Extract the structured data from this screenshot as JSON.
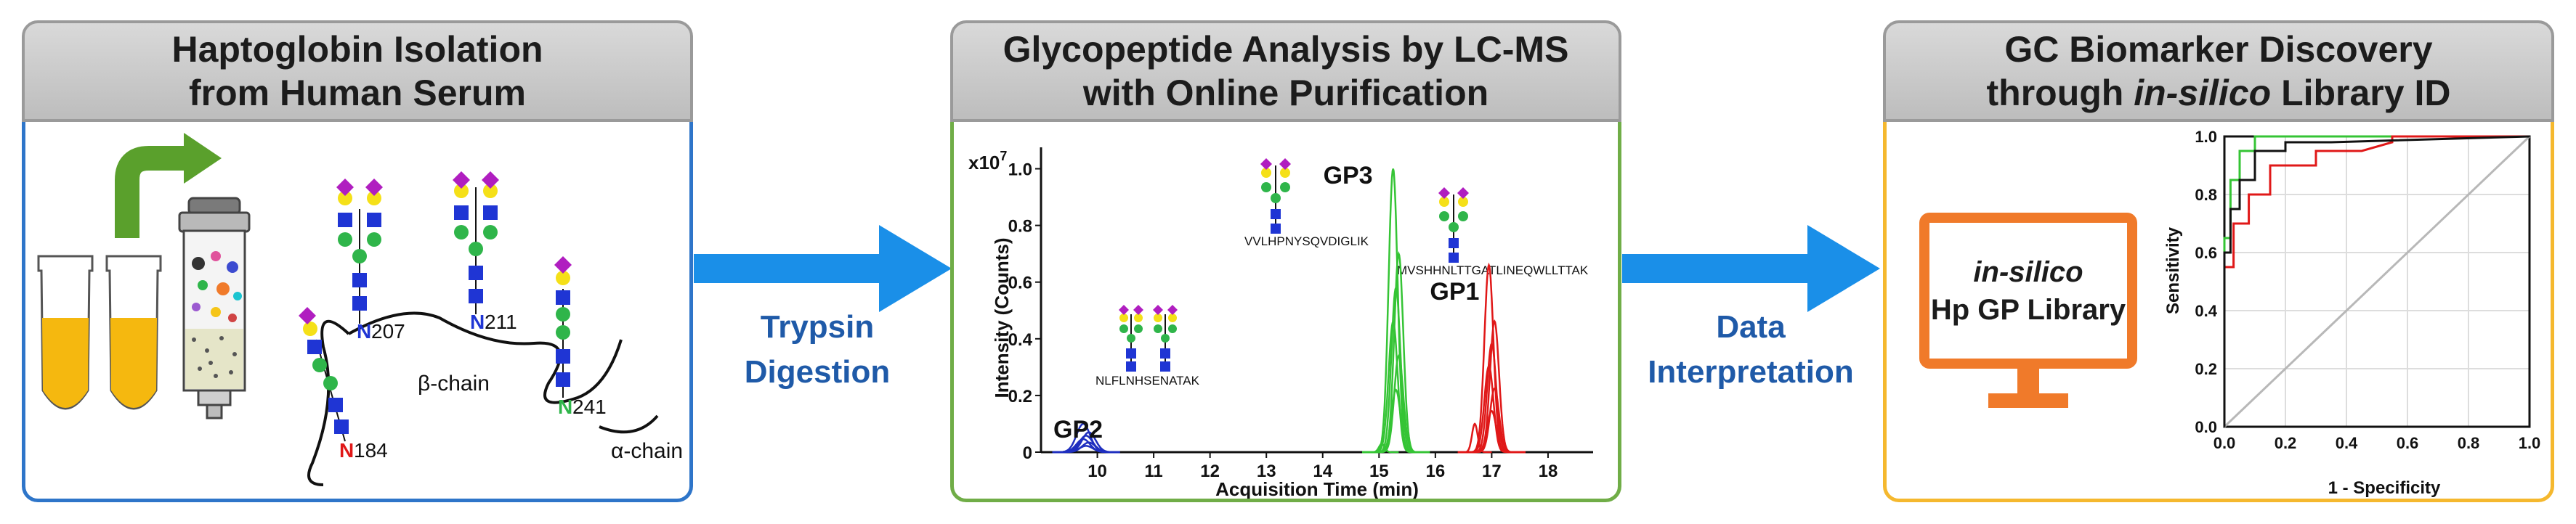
{
  "panel1": {
    "title_line1": "Haptoglobin Isolation",
    "title_line2": "from Human Serum",
    "labels": {
      "n207": "207",
      "n211": "211",
      "n241": "241",
      "n184": "184",
      "n": "N",
      "beta": "β-chain",
      "alpha": "α-chain"
    }
  },
  "arrow1": {
    "line1": "Trypsin",
    "line2": "Digestion"
  },
  "panel2": {
    "title_line1": "Glycopeptide Analysis by LC-MS",
    "title_line2": "with Online Purification",
    "exp_label": "x10",
    "exp_power": "7",
    "gp3_seq": "VVLHPNYSQVDIGLIK",
    "gp1_seq": "MVSHHNLTTGATLINEQWLLTTAK",
    "gp2_seq": "NLFLNHSENATAK"
  },
  "arrow2": {
    "line1": "Data",
    "line2": "Interpretation"
  },
  "panel3": {
    "title_line1": "GC Biomarker Discovery",
    "title_pre": "through ",
    "title_ital": "in-silico",
    "title_post": " Library ID",
    "monitor_line1": "in-silico",
    "monitor_line2": "Hp GP Library"
  },
  "colors": {
    "panel1_border": "#2e75c9",
    "panel2_border": "#70ad47",
    "panel3_border": "#f5b82e",
    "arrow": "#1a8fe8",
    "monitor": "#f07a2a"
  },
  "chart_data": [
    {
      "type": "line",
      "title": "",
      "xlabel": "Acquisition Time (min)",
      "ylabel": "Intensity (Counts)",
      "y_multiplier": "x10^7",
      "xlim": [
        9,
        18.8
      ],
      "ylim": [
        0,
        1.05
      ],
      "xticks": [
        10,
        11,
        12,
        13,
        14,
        15,
        16,
        17,
        18
      ],
      "yticks": [
        0,
        0.2,
        0.4,
        0.6,
        0.8,
        1.0
      ],
      "peaks": [
        {
          "name": "GP2",
          "color": "#1f2fbf",
          "center": 9.8,
          "height": 0.1
        },
        {
          "name": "GP3",
          "color": "#35c435",
          "center": 15.3,
          "height": 1.0
        },
        {
          "name": "GP1",
          "color": "#e01818",
          "center": 17.0,
          "height": 0.66
        }
      ]
    },
    {
      "type": "line",
      "title": "",
      "xlabel": "1 - Specificity",
      "ylabel": "Sensitivity",
      "xlim": [
        0,
        1
      ],
      "ylim": [
        0,
        1
      ],
      "xticks": [
        0.0,
        0.2,
        0.4,
        0.6,
        0.8,
        1.0
      ],
      "yticks": [
        0.0,
        0.2,
        0.4,
        0.6,
        0.8,
        1.0
      ],
      "series": [
        {
          "color": "#111111",
          "points": [
            [
              0,
              0
            ],
            [
              0,
              0.6
            ],
            [
              0.02,
              0.6
            ],
            [
              0.02,
              0.75
            ],
            [
              0.05,
              0.75
            ],
            [
              0.05,
              0.85
            ],
            [
              0.1,
              0.85
            ],
            [
              0.1,
              0.95
            ],
            [
              0.2,
              0.95
            ],
            [
              0.2,
              0.98
            ],
            [
              0.35,
              0.98
            ],
            [
              1,
              1
            ]
          ]
        },
        {
          "color": "#e01818",
          "points": [
            [
              0,
              0
            ],
            [
              0,
              0.55
            ],
            [
              0.03,
              0.55
            ],
            [
              0.03,
              0.7
            ],
            [
              0.08,
              0.7
            ],
            [
              0.08,
              0.8
            ],
            [
              0.15,
              0.8
            ],
            [
              0.15,
              0.9
            ],
            [
              0.3,
              0.9
            ],
            [
              0.3,
              0.95
            ],
            [
              0.45,
              0.95
            ],
            [
              0.55,
              0.98
            ],
            [
              0.55,
              1
            ],
            [
              1,
              1
            ]
          ]
        },
        {
          "color": "#35c435",
          "points": [
            [
              0,
              0
            ],
            [
              0,
              0.65
            ],
            [
              0.02,
              0.65
            ],
            [
              0.02,
              0.85
            ],
            [
              0.05,
              0.85
            ],
            [
              0.05,
              0.95
            ],
            [
              0.1,
              0.95
            ],
            [
              0.1,
              1
            ],
            [
              1,
              1
            ]
          ]
        },
        {
          "color": "#b8b8b8",
          "points": [
            [
              0,
              0
            ],
            [
              1,
              1
            ]
          ]
        }
      ]
    }
  ]
}
